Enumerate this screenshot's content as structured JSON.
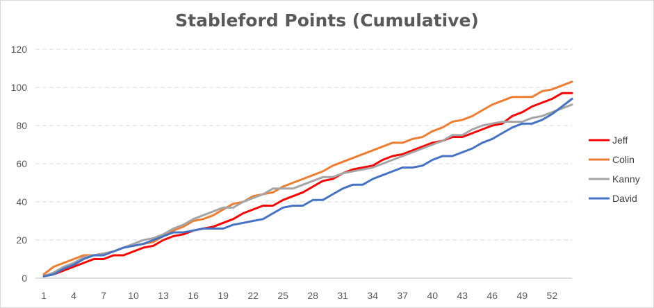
{
  "chart_data": {
    "type": "line",
    "title": "Stableford Points (Cumulative)",
    "xlabel": "",
    "ylabel": "",
    "x_tick_labels": [
      "1",
      "4",
      "7",
      "10",
      "13",
      "16",
      "19",
      "22",
      "25",
      "28",
      "31",
      "34",
      "37",
      "40",
      "43",
      "46",
      "49",
      "52"
    ],
    "y_ticks": [
      0,
      20,
      40,
      60,
      80,
      100,
      120
    ],
    "ylim": [
      0,
      120
    ],
    "x_range": [
      1,
      54
    ],
    "grid": "horizontal dashed",
    "legend_position": "right",
    "series": [
      {
        "name": "Jeff",
        "color": "#ff0000",
        "values": [
          1,
          2,
          4,
          6,
          8,
          10,
          10,
          12,
          12,
          14,
          16,
          17,
          20,
          22,
          23,
          25,
          26,
          27,
          29,
          31,
          34,
          36,
          38,
          38,
          41,
          43,
          45,
          48,
          51,
          52,
          55,
          57,
          58,
          59,
          62,
          64,
          65,
          67,
          69,
          71,
          72,
          74,
          74,
          76,
          78,
          80,
          81,
          85,
          87,
          90,
          92,
          94,
          97,
          97
        ]
      },
      {
        "name": "Colin",
        "color": "#ed7d31",
        "values": [
          2,
          6,
          8,
          10,
          12,
          12,
          13,
          14,
          16,
          17,
          18,
          19,
          22,
          25,
          27,
          30,
          31,
          33,
          36,
          39,
          40,
          43,
          44,
          45,
          48,
          50,
          52,
          54,
          56,
          59,
          61,
          63,
          65,
          67,
          69,
          71,
          71,
          73,
          74,
          77,
          79,
          82,
          83,
          85,
          88,
          91,
          93,
          95,
          95,
          95,
          98,
          99,
          101,
          103
        ]
      },
      {
        "name": "Kanny",
        "color": "#a5a5a5",
        "values": [
          1,
          3,
          6,
          8,
          11,
          12,
          13,
          14,
          16,
          18,
          20,
          21,
          23,
          26,
          28,
          31,
          33,
          35,
          37,
          37,
          40,
          42,
          44,
          47,
          47,
          47,
          49,
          51,
          53,
          53,
          55,
          56,
          57,
          58,
          60,
          62,
          64,
          66,
          68,
          70,
          72,
          75,
          75,
          78,
          80,
          81,
          82,
          82,
          82,
          84,
          85,
          87,
          89,
          91
        ]
      },
      {
        "name": "David",
        "color": "#4472c4",
        "values": [
          1,
          2,
          5,
          7,
          10,
          12,
          12,
          14,
          16,
          17,
          18,
          20,
          22,
          24,
          24,
          25,
          26,
          26,
          26,
          28,
          29,
          30,
          31,
          34,
          37,
          38,
          38,
          41,
          41,
          44,
          47,
          49,
          49,
          52,
          54,
          56,
          58,
          58,
          59,
          62,
          64,
          64,
          66,
          68,
          71,
          73,
          76,
          79,
          81,
          81,
          83,
          86,
          90,
          94
        ]
      }
    ]
  }
}
